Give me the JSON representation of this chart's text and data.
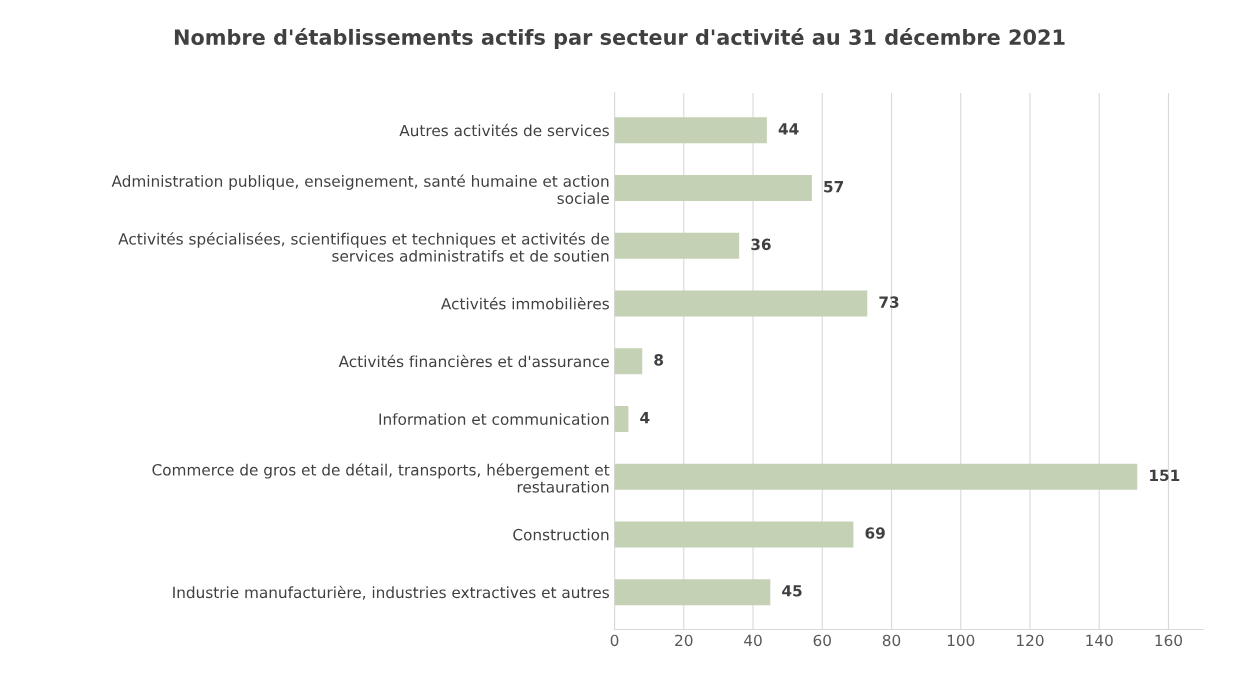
{
  "chart_data": {
    "type": "bar",
    "orientation": "horizontal",
    "title": "Nombre d'établissements actifs par secteur d'activité au 31 décembre 2021",
    "categories": [
      "Autres activités de services",
      "Administration publique, enseignement, santé humaine et action\nsociale",
      "Activités spécialisées, scientifiques et techniques et activités de\nservices administratifs et de soutien",
      "Activités immobilières",
      "Activités financières et d'assurance",
      "Information et communication",
      "Commerce de gros et de détail, transports, hébergement et\nrestauration",
      "Construction",
      "Industrie manufacturière, industries extractives et autres"
    ],
    "values": [
      44,
      57,
      36,
      73,
      8,
      4,
      151,
      69,
      45
    ],
    "color": "#c4d1b5",
    "xlim": [
      0,
      170
    ],
    "xticks": [
      0,
      20,
      40,
      60,
      80,
      100,
      120,
      140,
      160
    ],
    "grid": "x",
    "data_labels": true
  }
}
